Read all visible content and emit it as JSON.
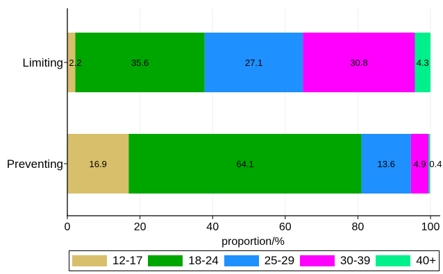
{
  "chart_data": {
    "type": "bar",
    "orientation": "horizontal",
    "stacked": true,
    "title": "",
    "xlabel": "proportion/%",
    "ylabel": "",
    "xlim": [
      0,
      100
    ],
    "xticks": [
      0,
      20,
      40,
      60,
      80,
      100
    ],
    "grid": "vertical",
    "legend_position": "bottom",
    "categories": [
      "Limiting",
      "Preventing"
    ],
    "series": [
      {
        "name": "12-17",
        "color": "#d8bf6b",
        "values": [
          2.2,
          16.9
        ],
        "labels": [
          "2.2",
          "16.9"
        ]
      },
      {
        "name": "18-24",
        "color": "#00a600",
        "values": [
          35.6,
          64.1
        ],
        "labels": [
          "35.6",
          "64.1"
        ]
      },
      {
        "name": "25-29",
        "color": "#1e90ff",
        "values": [
          27.1,
          13.6
        ],
        "labels": [
          "27.1",
          "13.6"
        ]
      },
      {
        "name": "30-39",
        "color": "#ff00ff",
        "values": [
          30.8,
          4.9
        ],
        "labels": [
          "30.8",
          "4.9"
        ]
      },
      {
        "name": "40+",
        "color": "#00f08c",
        "values": [
          4.3,
          0.4
        ],
        "labels": [
          "4.3",
          "0.4"
        ]
      }
    ]
  }
}
